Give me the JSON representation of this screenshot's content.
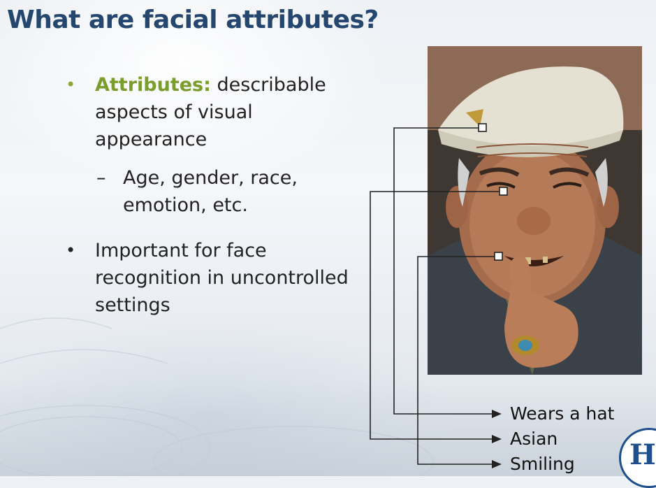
{
  "slide": {
    "title": "What are facial attributes?",
    "bullet1": {
      "term": "Attributes:",
      "text_line1": " describable",
      "text_line2": "aspects of visual",
      "text_line3": "appearance"
    },
    "sub1": {
      "line1": "Age, gender, race,",
      "line2": "emotion, etc."
    },
    "bullet2": {
      "line1": "Important for face",
      "line2": "recognition in uncontrolled",
      "line3": "settings"
    },
    "labels": [
      "Wears a hat",
      "Asian",
      "Smiling"
    ],
    "logo_text": "H"
  },
  "colors": {
    "title": "#25476f",
    "highlight": "#7a9d2b",
    "body_text": "#222222"
  }
}
